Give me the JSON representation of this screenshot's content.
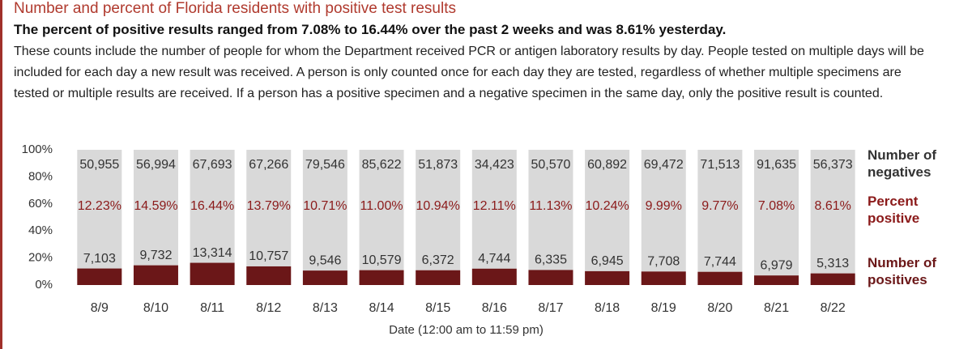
{
  "chart_data": {
    "type": "bar",
    "stacking": "percent",
    "title": "Number and percent of Florida residents with positive test results",
    "subtitle": "The percent of positive results ranged from 7.08% to 16.44% over the past 2 weeks and was 8.61% yesterday.",
    "description": "These counts include the number of people for whom the Department received PCR or antigen laboratory results by day. People tested on multiple days will be included for each day a new result was received. A person is only counted once for each day they are tested, regardless of whether multiple specimens are tested or multiple results are received. If a person has a positive specimen and a negative specimen in the same day, only the positive result is counted.",
    "x_label": "Date (12:00 am to 11:59 pm)",
    "categories": [
      "8/9",
      "8/10",
      "8/11",
      "8/12",
      "8/13",
      "8/14",
      "8/15",
      "8/16",
      "8/17",
      "8/18",
      "8/19",
      "8/20",
      "8/21",
      "8/22"
    ],
    "series": [
      {
        "name": "Number of negatives",
        "color": "#d9d9d9",
        "values": [
          50955,
          56994,
          67693,
          67266,
          79546,
          85622,
          51873,
          34423,
          50570,
          60892,
          69472,
          71513,
          91635,
          56373
        ],
        "value_labels": [
          "50,955",
          "56,994",
          "67,693",
          "67,266",
          "79,546",
          "85,622",
          "51,873",
          "34,423",
          "50,570",
          "60,892",
          "69,472",
          "71,513",
          "91,635",
          "56,373"
        ]
      },
      {
        "name": "Percent positive",
        "color": "#8b1a1a",
        "values": [
          12.23,
          14.59,
          16.44,
          13.79,
          10.71,
          11.0,
          10.94,
          12.11,
          11.13,
          10.24,
          9.99,
          9.77,
          7.08,
          8.61
        ],
        "value_labels": [
          "12.23%",
          "14.59%",
          "16.44%",
          "13.79%",
          "10.71%",
          "11.00%",
          "10.94%",
          "12.11%",
          "11.13%",
          "10.24%",
          "9.99%",
          "9.77%",
          "7.08%",
          "8.61%"
        ]
      },
      {
        "name": "Number of positives",
        "color": "#6b1718",
        "values": [
          7103,
          9732,
          13314,
          10757,
          9546,
          10579,
          6372,
          4744,
          6335,
          6945,
          7708,
          7744,
          6979,
          5313
        ],
        "value_labels": [
          "7,103",
          "9,732",
          "13,314",
          "10,757",
          "9,546",
          "10,579",
          "6,372",
          "4,744",
          "6,335",
          "6,945",
          "7,708",
          "7,744",
          "6,979",
          "5,313"
        ]
      }
    ],
    "ylim": [
      0,
      100
    ],
    "yticks": [
      {
        "value": 0,
        "label": "0%"
      },
      {
        "value": 20,
        "label": "20%"
      },
      {
        "value": 40,
        "label": "40%"
      },
      {
        "value": 60,
        "label": "60%"
      },
      {
        "value": 80,
        "label": "80%"
      },
      {
        "value": 100,
        "label": "100%"
      }
    ],
    "grid": false,
    "legend": "right"
  }
}
